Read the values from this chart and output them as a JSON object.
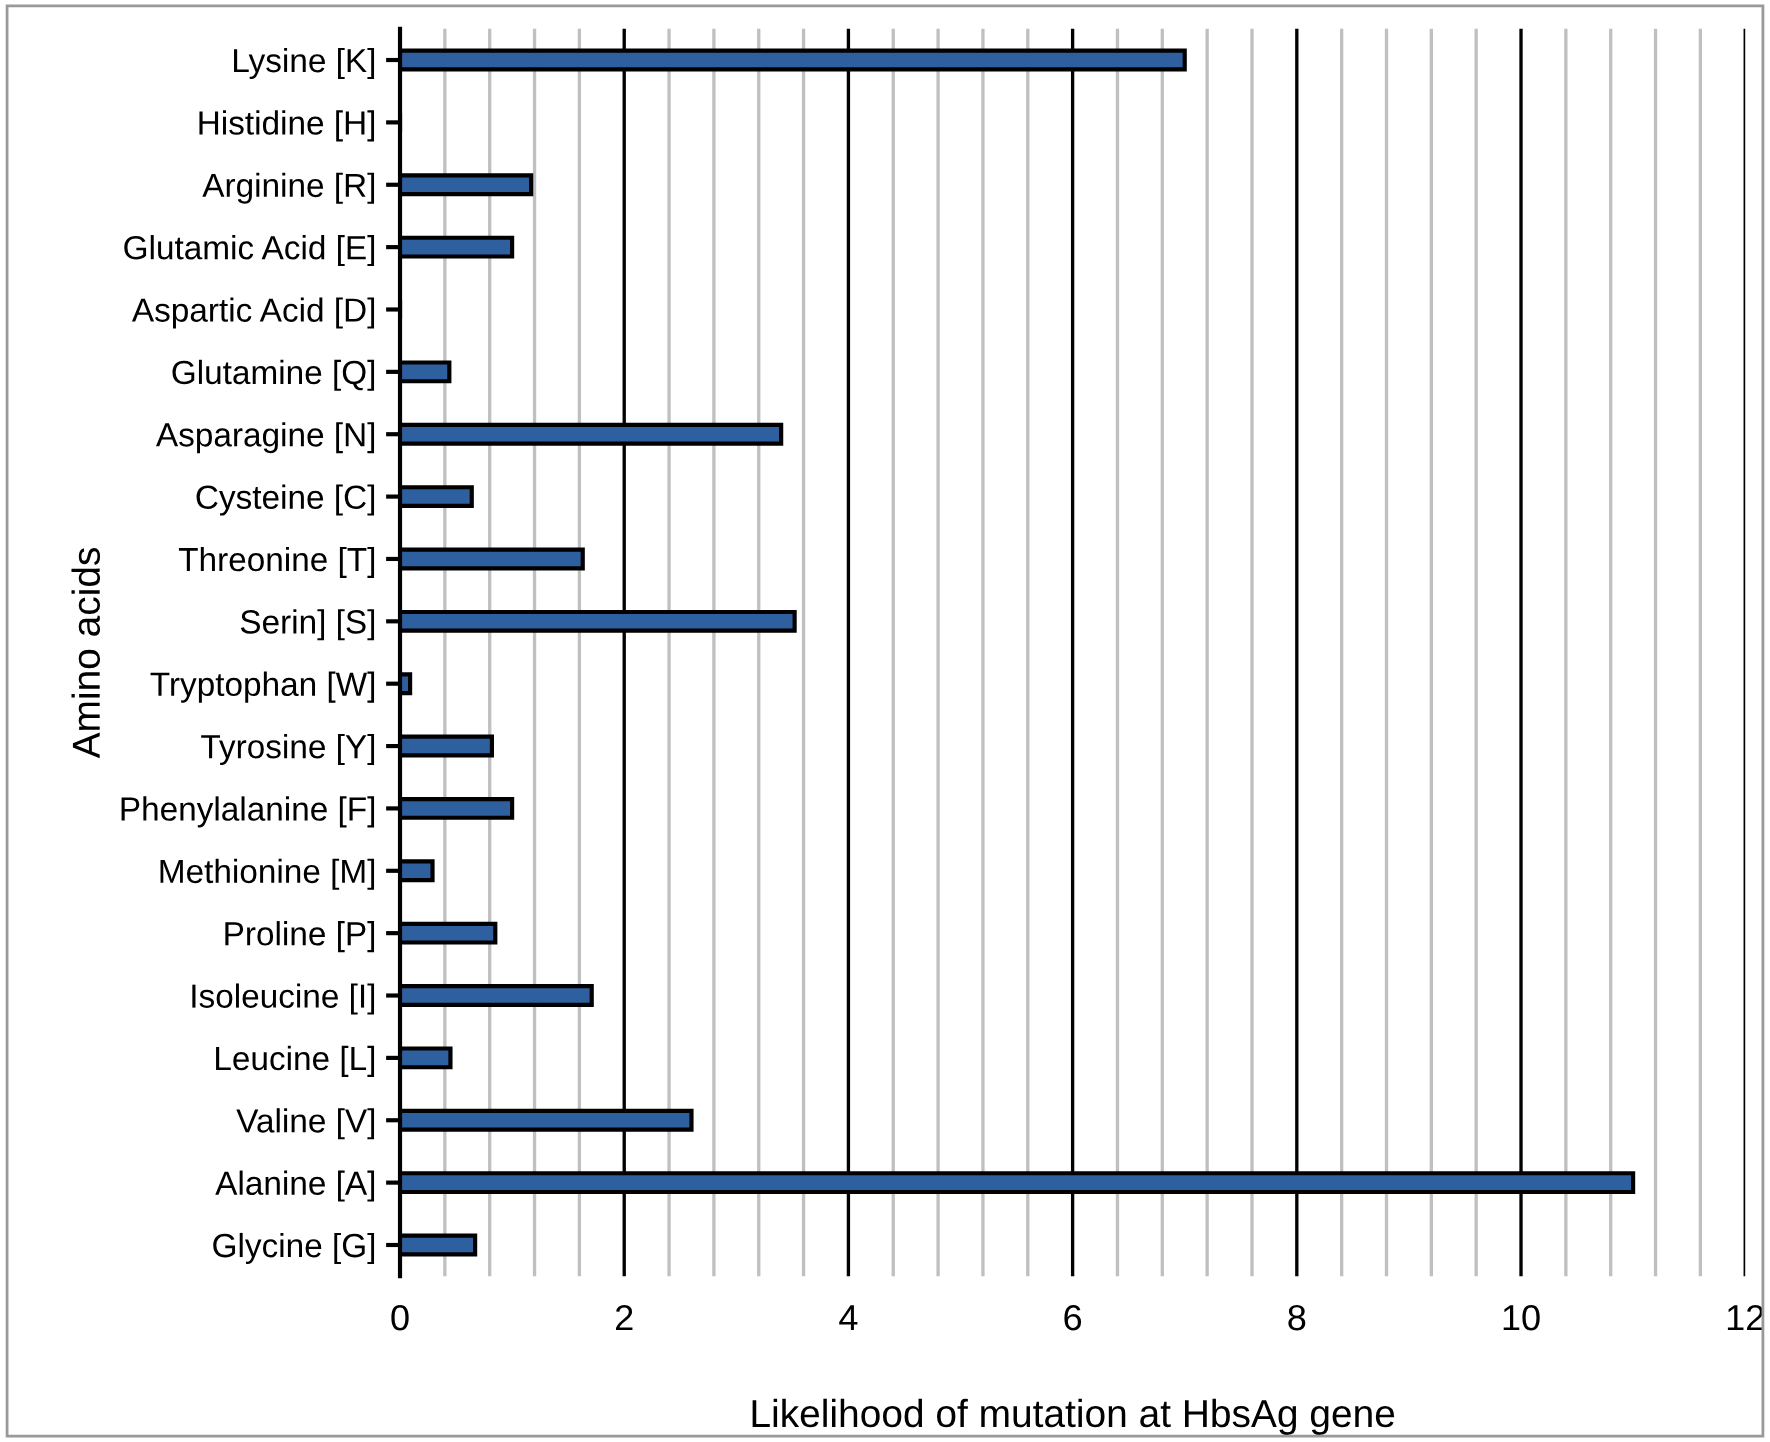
{
  "chart_data": {
    "type": "bar",
    "orientation": "horizontal",
    "xlabel": "Likelihood of mutation at HbsAg gene",
    "ylabel": "Amino acids",
    "categories": [
      "Lysine [K]",
      "Histidine [H]",
      "Arginine [R]",
      "Glutamic Acid [E]",
      "Aspartic Acid [D]",
      "Glutamine [Q]",
      "Asparagine [N]",
      "Cysteine [C]",
      "Threonine [T]",
      "Serin] [S]",
      "Tryptophan [W]",
      "Tyrosine [Y]",
      "Phenylalanine [F]",
      "Methionine [M]",
      "Proline [P]",
      "Isoleucine [I]",
      "Leucine [L]",
      "Valine [V]",
      "Alanine [A]",
      "Glycine [G]"
    ],
    "values": [
      7.0,
      0,
      1.17,
      1.0,
      0,
      0.44,
      3.4,
      0.64,
      1.63,
      3.52,
      0.09,
      0.82,
      1.0,
      0.29,
      0.85,
      1.71,
      0.45,
      2.6,
      11.0,
      0.67
    ],
    "color": "#2e5f9e",
    "xlim": [
      0,
      12
    ],
    "xticks": [
      0,
      2,
      4,
      6,
      8,
      10,
      12
    ],
    "grid": "x"
  }
}
